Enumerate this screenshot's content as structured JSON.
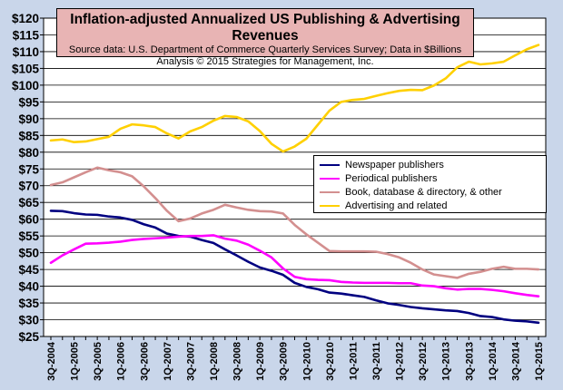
{
  "title": {
    "main": "Inflation-adjusted Annualized US Publishing & Advertising Revenues",
    "sub1": "Source data: U.S. Department of Commerce Quarterly Services Survey; Data in $Billions",
    "sub2": "Analysis © 2015 Strategies for Management, Inc."
  },
  "chart_data": {
    "type": "line",
    "ylim": [
      25,
      120
    ],
    "yticks": [
      25,
      30,
      35,
      40,
      45,
      50,
      55,
      60,
      65,
      70,
      75,
      80,
      85,
      90,
      95,
      100,
      105,
      110,
      115,
      120
    ],
    "ytick_labels": [
      "$25",
      "$30",
      "$35",
      "$40",
      "$45",
      "$50",
      "$55",
      "$60",
      "$65",
      "$70",
      "$75",
      "$80",
      "$85",
      "$90",
      "$95",
      "$100",
      "$105",
      "$110",
      "$115",
      "$120"
    ],
    "x_tick_labels": [
      "3Q-2004",
      "1Q-2005",
      "3Q-2005",
      "1Q-2006",
      "3Q-2006",
      "1Q-2007",
      "3Q-2007",
      "1Q-2008",
      "3Q-2008",
      "1Q-2009",
      "3Q-2009",
      "1Q-2010",
      "3Q-2010",
      "1Q-2011",
      "3Q-2011",
      "1Q-2012",
      "3Q-2012",
      "1Q-2013",
      "3Q-2013",
      "1Q-2014",
      "3Q-2014",
      "1Q-2015"
    ],
    "categories": [
      "3Q-2004",
      "4Q-2004",
      "1Q-2005",
      "2Q-2005",
      "3Q-2005",
      "4Q-2005",
      "1Q-2006",
      "2Q-2006",
      "3Q-2006",
      "4Q-2006",
      "1Q-2007",
      "2Q-2007",
      "3Q-2007",
      "4Q-2007",
      "1Q-2008",
      "2Q-2008",
      "3Q-2008",
      "4Q-2008",
      "1Q-2009",
      "2Q-2009",
      "3Q-2009",
      "4Q-2009",
      "1Q-2010",
      "2Q-2010",
      "3Q-2010",
      "4Q-2010",
      "1Q-2011",
      "2Q-2011",
      "3Q-2011",
      "4Q-2011",
      "1Q-2012",
      "2Q-2012",
      "3Q-2012",
      "4Q-2012",
      "1Q-2013",
      "2Q-2013",
      "3Q-2013",
      "4Q-2013",
      "1Q-2014",
      "2Q-2014",
      "3Q-2014",
      "4Q-2014",
      "1Q-2015"
    ],
    "grid": true,
    "legend_position": "right-middle",
    "series": [
      {
        "name": "Newspaper publishers",
        "color": "#000080",
        "values": [
          62.5,
          62.4,
          61.8,
          61.4,
          61.3,
          60.8,
          60.5,
          59.8,
          58.5,
          57.5,
          55.7,
          55.0,
          54.8,
          53.8,
          52.9,
          51.0,
          49.2,
          47.3,
          45.6,
          44.6,
          43.4,
          41.0,
          39.8,
          39.1,
          38.1,
          37.8,
          37.3,
          36.8,
          35.8,
          34.9,
          34.4,
          33.8,
          33.4,
          33.1,
          32.8,
          32.6,
          32.0,
          31.1,
          30.8,
          30.1,
          29.7,
          29.5,
          29.1
        ]
      },
      {
        "name": "Periodical publishers",
        "color": "#ff00ff",
        "values": [
          47.0,
          49.2,
          51.0,
          52.7,
          52.8,
          53.0,
          53.3,
          53.8,
          54.1,
          54.3,
          54.5,
          54.8,
          55.0,
          55.0,
          55.2,
          54.2,
          53.6,
          52.4,
          50.6,
          48.6,
          45.3,
          42.8,
          42.1,
          41.9,
          41.8,
          41.3,
          41.1,
          41.0,
          41.0,
          41.0,
          40.9,
          40.9,
          40.2,
          40.0,
          39.4,
          39.0,
          39.2,
          39.2,
          38.9,
          38.5,
          37.9,
          37.4,
          37.0
        ]
      },
      {
        "name": "Book, database & directory, & other",
        "color": "#d38f8f",
        "values": [
          70.2,
          71.0,
          72.5,
          74.0,
          75.4,
          74.6,
          74.0,
          72.8,
          69.8,
          66.3,
          62.5,
          59.4,
          60.2,
          61.7,
          62.8,
          64.3,
          63.5,
          62.8,
          62.4,
          62.3,
          61.7,
          58.3,
          55.5,
          53.0,
          50.5,
          50.4,
          50.4,
          50.4,
          50.3,
          49.6,
          48.6,
          47.0,
          45.0,
          43.5,
          43.0,
          42.5,
          43.7,
          44.3,
          45.2,
          45.8,
          45.2,
          45.2,
          45.0
        ]
      },
      {
        "name": "Advertising and related",
        "color": "#ffd000",
        "values": [
          83.5,
          83.8,
          83.0,
          83.2,
          83.9,
          84.6,
          87.0,
          88.3,
          88.0,
          87.5,
          85.6,
          84.1,
          86.2,
          87.5,
          89.4,
          90.8,
          90.5,
          89.2,
          86.3,
          82.5,
          80.2,
          81.7,
          84.0,
          88.2,
          92.4,
          95.0,
          95.6,
          95.9,
          96.8,
          97.6,
          98.3,
          98.6,
          98.5,
          99.9,
          102.0,
          105.3,
          107.0,
          106.2,
          106.5,
          107.0,
          108.9,
          110.7,
          112.0
        ]
      }
    ]
  }
}
